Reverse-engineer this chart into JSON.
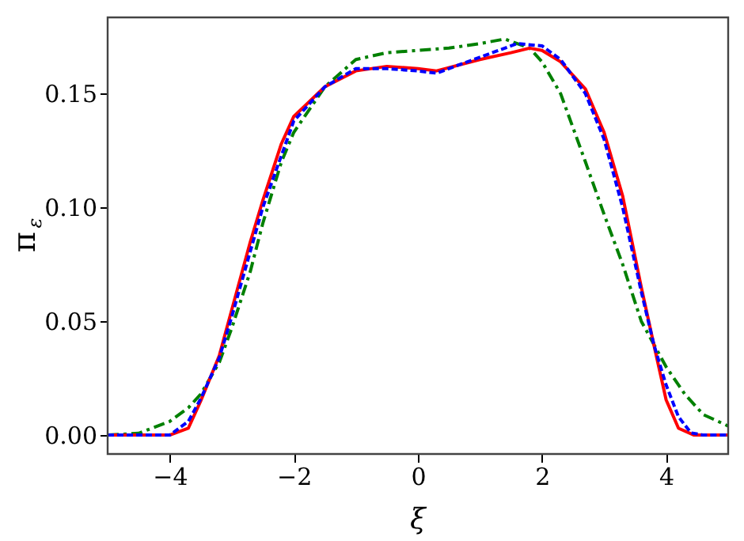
{
  "chart_data": {
    "type": "line",
    "xlabel": "ξ",
    "ylabel": "π$_{ε}$",
    "xlim": [
      -5,
      5
    ],
    "ylim": [
      -0.0083,
      0.1835
    ],
    "xticks": [
      -4,
      -2,
      0,
      2,
      4
    ],
    "yticks": [
      {
        "value": 0,
        "label": "0.00"
      },
      {
        "value": 0.05,
        "label": "0.05"
      },
      {
        "value": 0.1,
        "label": "0.10"
      },
      {
        "value": 0.15,
        "label": "0.15"
      }
    ],
    "grid": false,
    "legend": false,
    "marker": "none",
    "series": [
      {
        "color": "#008000",
        "line_style": "dashdot",
        "x": [
          -5,
          -4.5,
          -4,
          -3.7,
          -3.5,
          -3.2,
          -3,
          -2.7,
          -2.5,
          -2.2,
          -2,
          -1.5,
          -1,
          -0.5,
          0,
          0.5,
          1,
          1.4,
          1.8,
          2,
          2.3,
          2.7,
          3,
          3.3,
          3.6,
          3.8,
          4,
          4.3,
          4.6,
          5
        ],
        "values": [
          0,
          0.0008,
          0.006,
          0.012,
          0.018,
          0.032,
          0.047,
          0.072,
          0.093,
          0.12,
          0.133,
          0.153,
          0.165,
          0.168,
          0.169,
          0.17,
          0.172,
          0.174,
          0.17,
          0.164,
          0.15,
          0.12,
          0.097,
          0.075,
          0.05,
          0.04,
          0.03,
          0.018,
          0.009,
          0.004
        ]
      },
      {
        "color": "#ff0000",
        "line_style": "solid",
        "x": [
          -5,
          -4,
          -3.7,
          -3.5,
          -3.2,
          -3,
          -2.7,
          -2.5,
          -2.2,
          -2,
          -1.5,
          -1,
          -0.5,
          0,
          0.3,
          1,
          1.5,
          1.8,
          2,
          2.3,
          2.7,
          3,
          3.3,
          3.6,
          3.8,
          4,
          4.2,
          4.45,
          5
        ],
        "values": [
          0,
          0,
          0.003,
          0.015,
          0.035,
          0.055,
          0.085,
          0.103,
          0.128,
          0.14,
          0.153,
          0.16,
          0.162,
          0.161,
          0.16,
          0.165,
          0.168,
          0.17,
          0.169,
          0.164,
          0.152,
          0.133,
          0.105,
          0.065,
          0.04,
          0.0155,
          0.003,
          0,
          0
        ]
      },
      {
        "color": "#0000ff",
        "line_style": "dashed",
        "x": [
          -5,
          -4,
          -3.7,
          -3.5,
          -3.2,
          -3,
          -2.5,
          -2,
          -1.5,
          -1,
          -0.5,
          0,
          0.3,
          1,
          1.6,
          2,
          2.3,
          2.7,
          3,
          3.3,
          3.6,
          3.8,
          4,
          4.2,
          4.4,
          4.6,
          5
        ],
        "values": [
          0,
          0,
          0.006,
          0.016,
          0.034,
          0.052,
          0.1,
          0.138,
          0.153,
          0.161,
          0.161,
          0.16,
          0.159,
          0.166,
          0.172,
          0.171,
          0.165,
          0.15,
          0.13,
          0.1,
          0.063,
          0.04,
          0.022,
          0.008,
          0.001,
          0,
          0
        ]
      }
    ]
  }
}
